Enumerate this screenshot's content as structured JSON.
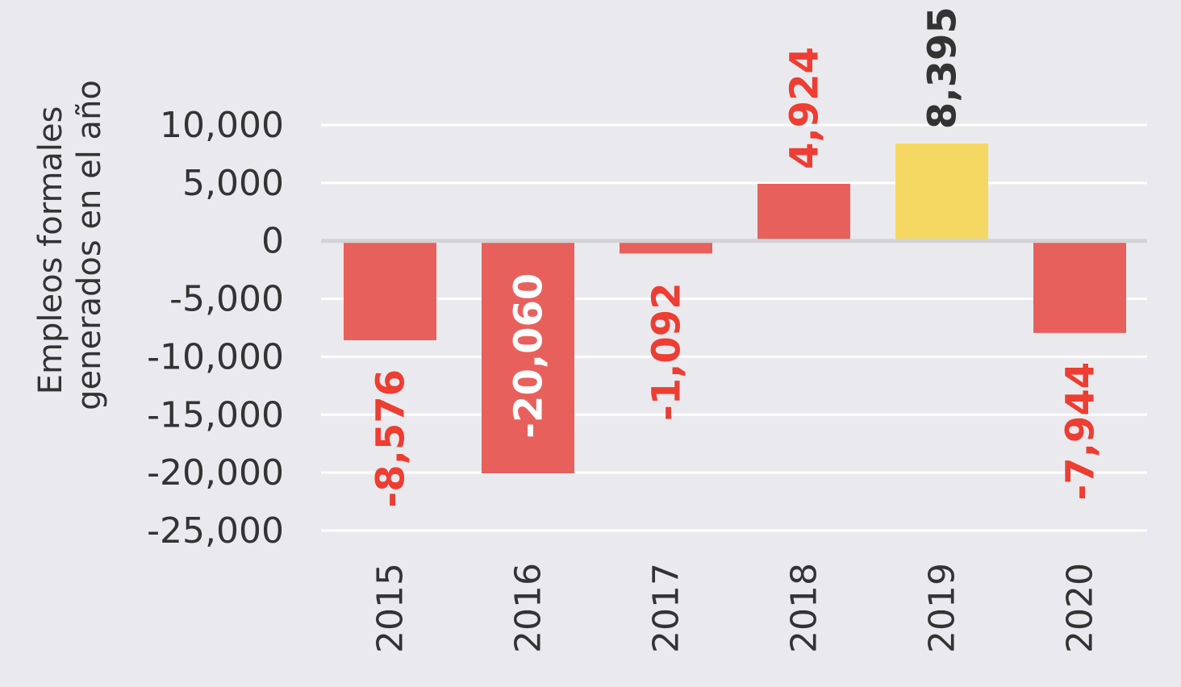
{
  "chart_data": {
    "type": "bar",
    "title": "",
    "xlabel": "",
    "ylabel": "Empleos formales generados en el año",
    "ylabel_lines": [
      "Empleos formales",
      "generados en el año"
    ],
    "categories": [
      "2015",
      "2016",
      "2017",
      "2018",
      "2019",
      "2020"
    ],
    "values": [
      -8576,
      -20060,
      -1092,
      4924,
      8395,
      -7944
    ],
    "value_labels": [
      "-8,576",
      "-20,060",
      "-1,092",
      "4,924",
      "8,395",
      "-7,944"
    ],
    "bar_colors": [
      "#e8605c",
      "#e8605c",
      "#e8605c",
      "#e8605c",
      "#f5d862",
      "#e8605c"
    ],
    "label_colors": [
      "#ee3d32",
      "#ffffff",
      "#ee3d32",
      "#ee3d32",
      "#333333",
      "#ee3d32"
    ],
    "ylim": [
      -25000,
      10000
    ],
    "yticks": [
      10000,
      5000,
      0,
      -5000,
      -10000,
      -15000,
      -20000,
      -25000
    ],
    "ytick_labels": [
      "10,000",
      "5,000",
      "0",
      "-5,000",
      "-10,000",
      "-15,000",
      "-20,000",
      "-25,000"
    ],
    "grid": true,
    "legend": "none",
    "colors": {
      "background": "#eaeaee",
      "gridline": "#ffffff",
      "zeroline": "#d3d3d6",
      "text": "#333333"
    }
  }
}
